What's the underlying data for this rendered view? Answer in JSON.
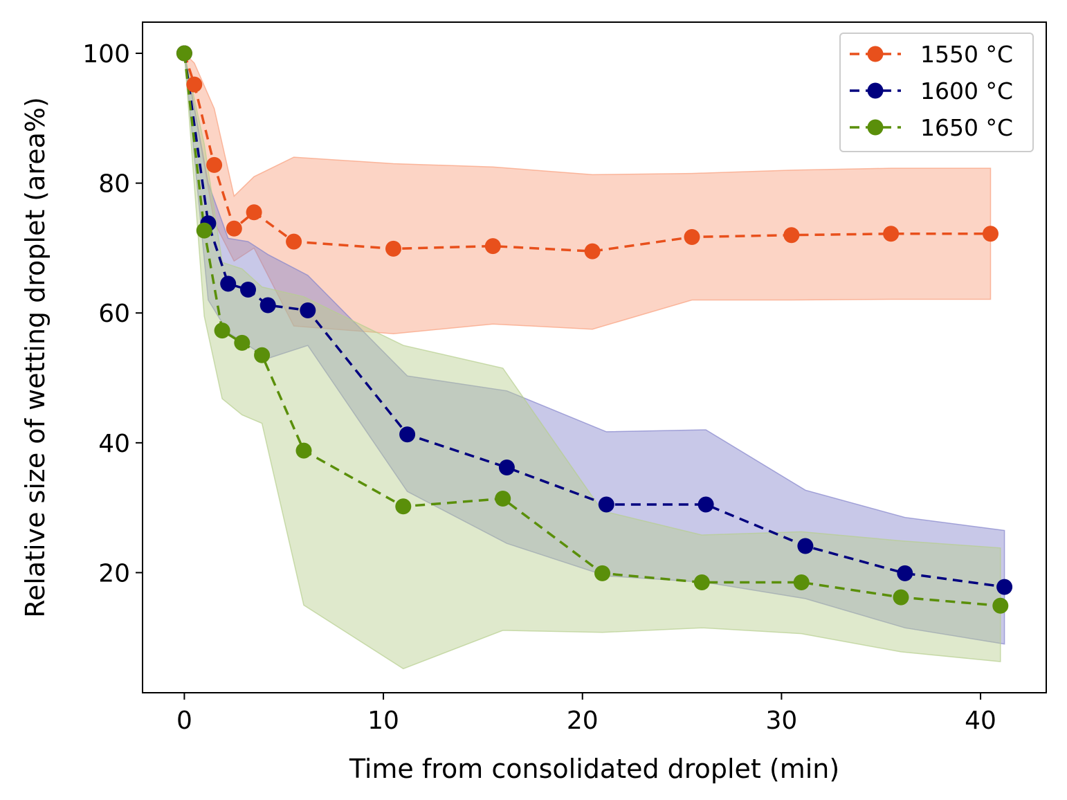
{
  "chart_data": {
    "type": "line",
    "title": "",
    "xlabel": "Time from consolidated droplet (min)",
    "ylabel": "Relative size of wetting droplet (area%)",
    "xlim": [
      -2.1,
      43.3
    ],
    "ylim": [
      1.5,
      104.8
    ],
    "xticks": [
      0,
      10,
      20,
      30,
      40
    ],
    "yticks": [
      20,
      40,
      60,
      80,
      100
    ],
    "legend_position": "top-right",
    "series": [
      {
        "name": "1550 °C",
        "color": "#e8501c",
        "band_color": "#f9a07e",
        "points": [
          {
            "x": 0.0,
            "y": 100.0
          },
          {
            "x": 0.5,
            "y": 95.2
          },
          {
            "x": 1.5,
            "y": 82.8
          },
          {
            "x": 2.5,
            "y": 73.0
          },
          {
            "x": 3.5,
            "y": 75.5
          },
          {
            "x": 5.5,
            "y": 71.0
          },
          {
            "x": 10.5,
            "y": 69.9
          },
          {
            "x": 15.5,
            "y": 70.3
          },
          {
            "x": 20.5,
            "y": 69.5
          },
          {
            "x": 25.5,
            "y": 71.7
          },
          {
            "x": 30.5,
            "y": 72.0
          },
          {
            "x": 35.5,
            "y": 72.2
          },
          {
            "x": 40.5,
            "y": 72.2
          }
        ],
        "band_upper": [
          100.0,
          98.5,
          91.5,
          78.0,
          81.0,
          84.0,
          83.0,
          82.5,
          81.3,
          81.5,
          82.0,
          82.3,
          82.3
        ],
        "band_lower": [
          100.0,
          91.5,
          74.0,
          68.0,
          70.0,
          58.0,
          56.8,
          58.3,
          57.5,
          62.0,
          62.0,
          62.1,
          62.1
        ]
      },
      {
        "name": "1600 °C",
        "color": "#00007f",
        "band_color": "#8585cc",
        "points": [
          {
            "x": 0.0,
            "y": 100.0
          },
          {
            "x": 1.2,
            "y": 73.8
          },
          {
            "x": 2.2,
            "y": 64.5
          },
          {
            "x": 3.2,
            "y": 63.6
          },
          {
            "x": 4.2,
            "y": 61.2
          },
          {
            "x": 6.2,
            "y": 60.4
          },
          {
            "x": 11.2,
            "y": 41.3
          },
          {
            "x": 16.2,
            "y": 36.2
          },
          {
            "x": 21.2,
            "y": 30.5
          },
          {
            "x": 26.2,
            "y": 30.5
          },
          {
            "x": 31.2,
            "y": 24.1
          },
          {
            "x": 36.2,
            "y": 19.9
          },
          {
            "x": 41.2,
            "y": 17.8
          }
        ],
        "band_upper": [
          100.0,
          80.0,
          71.5,
          71.0,
          69.0,
          65.8,
          50.3,
          48.0,
          41.7,
          42.0,
          32.7,
          28.5,
          26.5
        ],
        "band_lower": [
          100.0,
          62.0,
          57.0,
          55.0,
          53.0,
          55.0,
          32.5,
          24.5,
          19.5,
          18.5,
          16.0,
          11.5,
          9.0
        ]
      },
      {
        "name": "1650 °C",
        "color": "#5a8f0a",
        "band_color": "#b7cf8e",
        "points": [
          {
            "x": 0.0,
            "y": 100.0
          },
          {
            "x": 1.0,
            "y": 72.7
          },
          {
            "x": 1.9,
            "y": 57.3
          },
          {
            "x": 2.9,
            "y": 55.4
          },
          {
            "x": 3.9,
            "y": 53.5
          },
          {
            "x": 6.0,
            "y": 38.8
          },
          {
            "x": 11.0,
            "y": 30.2
          },
          {
            "x": 16.0,
            "y": 31.4
          },
          {
            "x": 21.0,
            "y": 19.9
          },
          {
            "x": 26.0,
            "y": 18.5
          },
          {
            "x": 31.0,
            "y": 18.5
          },
          {
            "x": 36.0,
            "y": 16.2
          },
          {
            "x": 41.0,
            "y": 14.9
          }
        ],
        "band_upper": [
          100.0,
          86.0,
          67.8,
          66.8,
          64.0,
          62.5,
          55.0,
          51.5,
          29.5,
          25.8,
          26.3,
          24.9,
          23.8
        ],
        "band_lower": [
          100.0,
          59.5,
          46.8,
          44.3,
          43.0,
          15.0,
          5.2,
          11.1,
          10.8,
          11.5,
          10.6,
          7.8,
          6.3
        ]
      }
    ]
  }
}
